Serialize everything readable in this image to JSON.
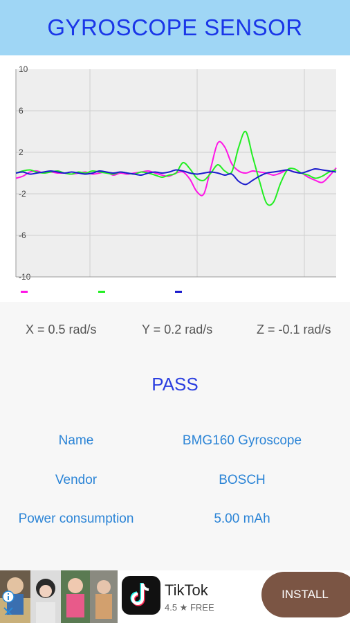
{
  "header": {
    "title": "GYROSCOPE SENSOR"
  },
  "chart_data": {
    "type": "line",
    "ylim": [
      -10,
      10
    ],
    "yticks": [
      "10",
      "6",
      "2",
      "-2",
      "-6",
      "-10"
    ],
    "grid": true,
    "legend_placement": "bottom-left",
    "series": [
      {
        "color": "#ff14e6",
        "values": [
          -0.5,
          -0.3,
          0.1,
          0.2,
          0.0,
          0.1,
          0.0,
          0.0,
          -0.1,
          0.0,
          0.1,
          -0.1,
          0.0,
          0.1,
          -0.2,
          0.0,
          -0.1,
          0.0,
          0.1,
          0.2,
          0.0,
          -0.2,
          -0.3,
          0.0,
          0.1,
          -0.6,
          -1.8,
          -2.0,
          0.5,
          2.9,
          2.5,
          0.9,
          0.2,
          0.0,
          0.2,
          0.1,
          0.0,
          -0.2,
          0.0,
          0.3,
          0.1,
          0.0,
          -0.4,
          -0.7,
          -0.9,
          -0.3,
          0.5
        ]
      },
      {
        "color": "#22ee22",
        "values": [
          0.0,
          0.2,
          0.3,
          0.1,
          0.0,
          0.1,
          0.2,
          0.0,
          -0.1,
          0.1,
          0.0,
          0.2,
          0.1,
          0.0,
          -0.1,
          0.1,
          0.0,
          -0.1,
          0.1,
          0.0,
          -0.2,
          -0.4,
          -0.2,
          0.0,
          1.0,
          0.4,
          -0.5,
          -0.7,
          0.0,
          0.8,
          0.2,
          0.1,
          2.5,
          4.0,
          1.6,
          -0.8,
          -2.9,
          -2.8,
          -1.0,
          0.3,
          0.4,
          0.0,
          -0.2,
          -0.5,
          -0.3,
          0.1,
          0.3
        ]
      },
      {
        "color": "#1a1acc",
        "values": [
          0.0,
          0.1,
          -0.1,
          0.0,
          0.1,
          0.2,
          0.1,
          0.0,
          0.1,
          0.0,
          -0.1,
          0.0,
          0.2,
          0.1,
          0.0,
          0.1,
          0.0,
          -0.1,
          -0.2,
          0.0,
          0.1,
          0.0,
          0.1,
          0.3,
          0.2,
          0.0,
          -0.1,
          0.0,
          0.1,
          0.0,
          -0.2,
          -0.1,
          -0.8,
          -1.1,
          -0.7,
          -0.3,
          0.0,
          0.1,
          0.2,
          0.3,
          0.1,
          0.0,
          0.2,
          0.4,
          0.3,
          0.2,
          0.1
        ]
      }
    ]
  },
  "readings": {
    "x": "X = 0.5 rad/s",
    "y": "Y = 0.2 rad/s",
    "z": "Z = -0.1 rad/s"
  },
  "status": "PASS",
  "info": {
    "name_label": "Name",
    "name_value": "BMG160 Gyroscope",
    "vendor_label": "Vendor",
    "vendor_value": "BOSCH",
    "power_label": "Power consumption",
    "power_value": "5.00 mAh"
  },
  "ad": {
    "app_name": "TikTok",
    "rating": "4.5 ★ FREE",
    "install_label": "INSTALL",
    "close_icon": "close-icon",
    "info_icon": "info-icon"
  }
}
